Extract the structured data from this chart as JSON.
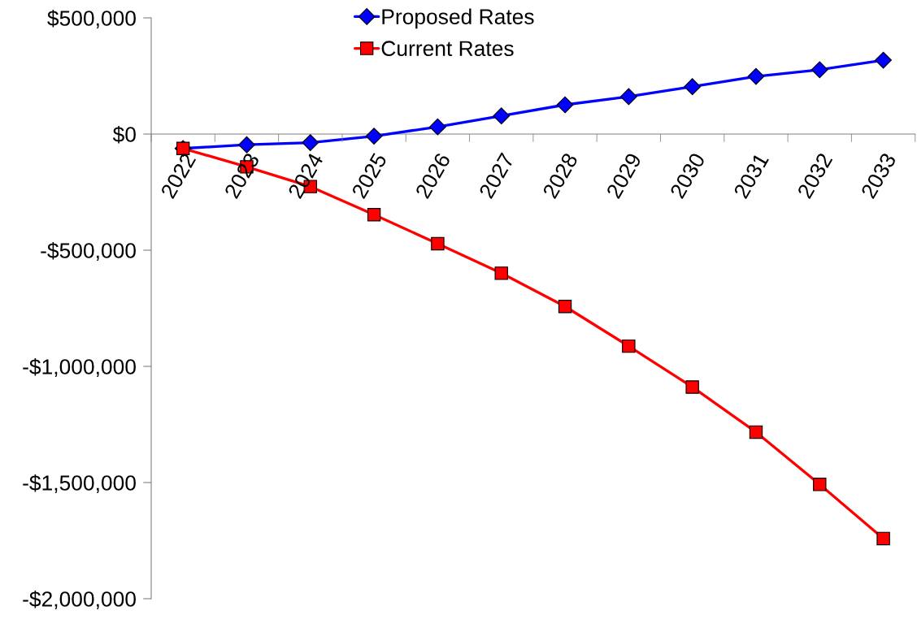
{
  "chart_data": {
    "type": "line",
    "categories": [
      "2022",
      "2023",
      "2024",
      "2025",
      "2026",
      "2027",
      "2028",
      "2029",
      "2030",
      "2031",
      "2032",
      "2033"
    ],
    "series": [
      {
        "name": "Proposed Rates",
        "color": "#0000ff",
        "marker": "diamond",
        "values": [
          -62000,
          -46000,
          -37000,
          -9000,
          31000,
          78000,
          126000,
          161000,
          204000,
          248000,
          277000,
          318000
        ]
      },
      {
        "name": "Current Rates",
        "color": "#ff0000",
        "marker": "square",
        "values": [
          -62000,
          -141000,
          -226000,
          -347000,
          -472000,
          -599000,
          -742000,
          -913000,
          -1089000,
          -1283000,
          -1508000,
          -1741000
        ]
      }
    ],
    "ylim": [
      -2000000,
      500000
    ],
    "yticks": [
      {
        "value": 500000,
        "label": "$500,000"
      },
      {
        "value": 0,
        "label": "$0"
      },
      {
        "value": -500000,
        "label": "-$500,000"
      },
      {
        "value": -1000000,
        "label": "-$1,000,000"
      },
      {
        "value": -1500000,
        "label": "-$1,500,000"
      },
      {
        "value": -2000000,
        "label": "-$2,000,000"
      }
    ],
    "legend": "top",
    "line_style": "solid"
  }
}
